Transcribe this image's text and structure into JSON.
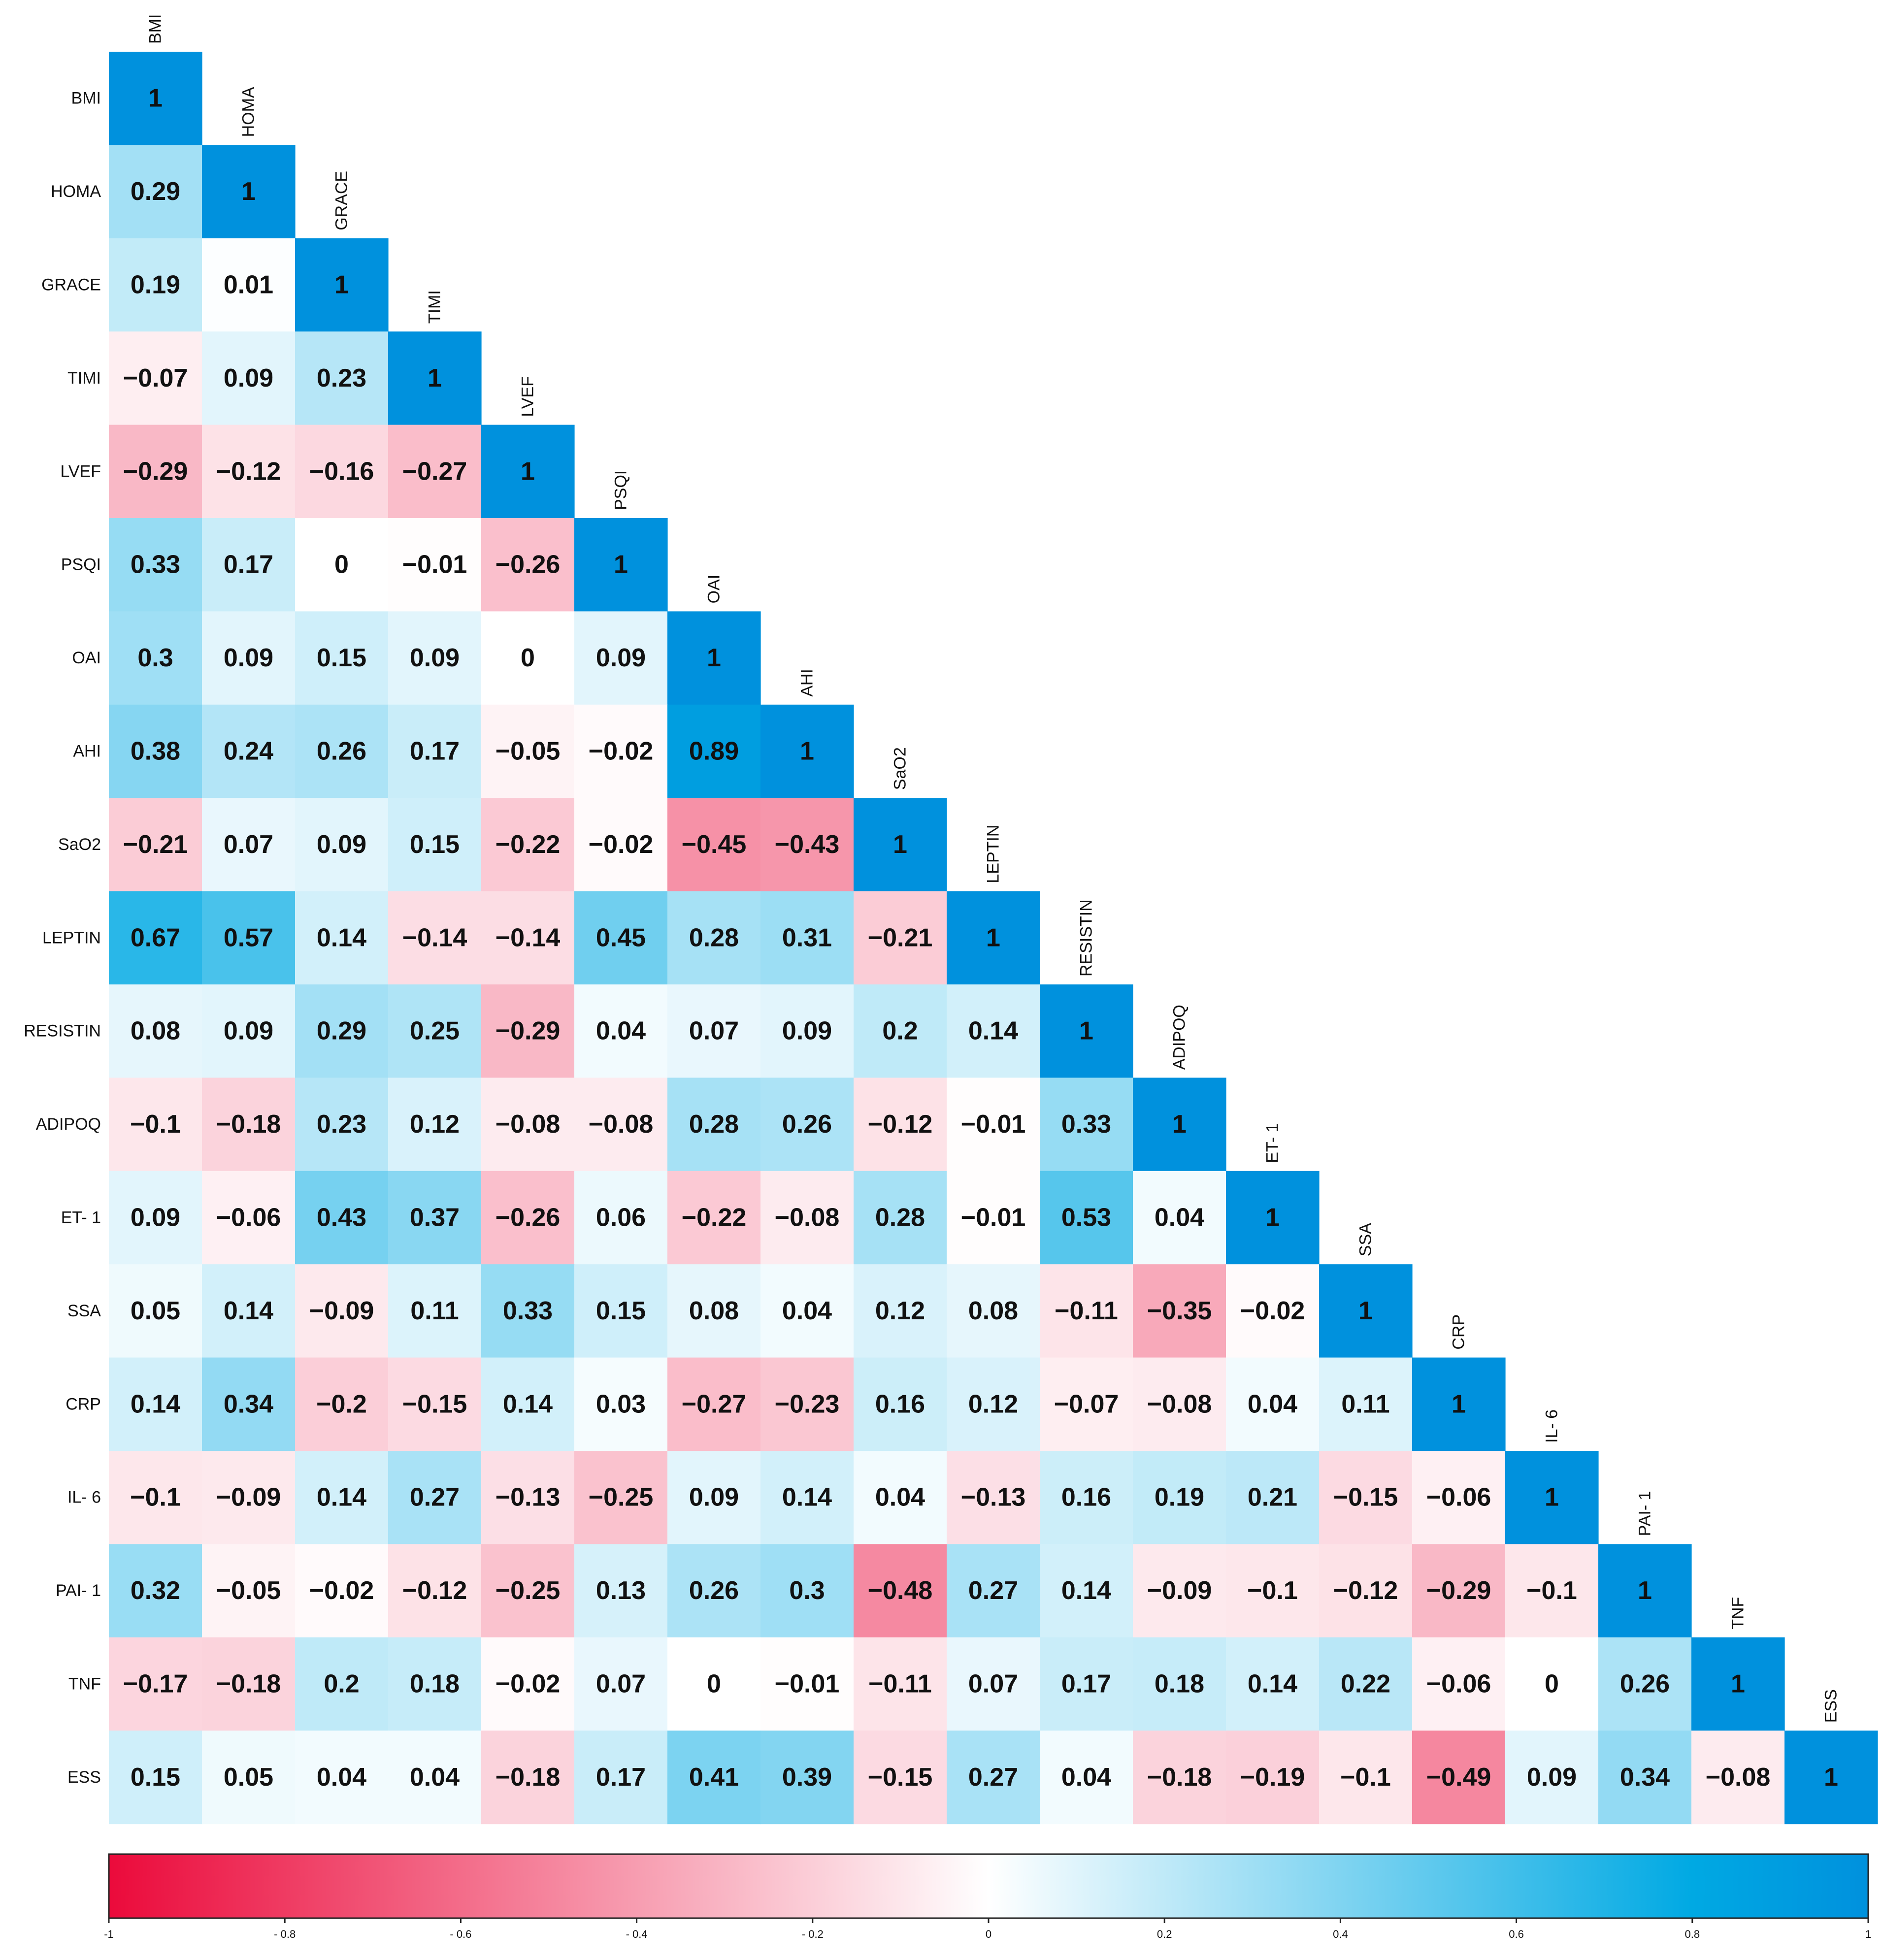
{
  "chart_data": {
    "type": "heatmap",
    "variables": [
      "BMI",
      "HOMA",
      "GRACE",
      "TIMI",
      "LVEF",
      "PSQI",
      "OAI",
      "AHI",
      "SaO2",
      "LEPTIN",
      "RESISTIN",
      "ADIPOQ",
      "ET- 1",
      "SSA",
      "CRP",
      "IL- 6",
      "PAI- 1",
      "TNF",
      "ESS"
    ],
    "layout": "lower-triangle",
    "matrix": [
      [
        "1"
      ],
      [
        "0.29",
        "1"
      ],
      [
        "0.19",
        "0.01",
        "1"
      ],
      [
        "−0.07",
        "0.09",
        "0.23",
        "1"
      ],
      [
        "−0.29",
        "−0.12",
        "−0.16",
        "−0.27",
        "1"
      ],
      [
        "0.33",
        "0.17",
        "0",
        "−0.01",
        "−0.26",
        "1"
      ],
      [
        "0.3",
        "0.09",
        "0.15",
        "0.09",
        "0",
        "0.09",
        "1"
      ],
      [
        "0.38",
        "0.24",
        "0.26",
        "0.17",
        "−0.05",
        "−0.02",
        "0.89",
        "1"
      ],
      [
        "−0.21",
        "0.07",
        "0.09",
        "0.15",
        "−0.22",
        "−0.02",
        "−0.45",
        "−0.43",
        "1"
      ],
      [
        "0.67",
        "0.57",
        "0.14",
        "−0.14",
        "−0.14",
        "0.45",
        "0.28",
        "0.31",
        "−0.21",
        "1"
      ],
      [
        "0.08",
        "0.09",
        "0.29",
        "0.25",
        "−0.29",
        "0.04",
        "0.07",
        "0.09",
        "0.2",
        "0.14",
        "1"
      ],
      [
        "−0.1",
        "−0.18",
        "0.23",
        "0.12",
        "−0.08",
        "−0.08",
        "0.28",
        "0.26",
        "−0.12",
        "−0.01",
        "0.33",
        "1"
      ],
      [
        "0.09",
        "−0.06",
        "0.43",
        "0.37",
        "−0.26",
        "0.06",
        "−0.22",
        "−0.08",
        "0.28",
        "−0.01",
        "0.53",
        "0.04",
        "1"
      ],
      [
        "0.05",
        "0.14",
        "−0.09",
        "0.11",
        "0.33",
        "0.15",
        "0.08",
        "0.04",
        "0.12",
        "0.08",
        "−0.11",
        "−0.35",
        "−0.02",
        "1"
      ],
      [
        "0.14",
        "0.34",
        "−0.2",
        "−0.15",
        "0.14",
        "0.03",
        "−0.27",
        "−0.23",
        "0.16",
        "0.12",
        "−0.07",
        "−0.08",
        "0.04",
        "0.11",
        "1"
      ],
      [
        "−0.1",
        "−0.09",
        "0.14",
        "0.27",
        "−0.13",
        "−0.25",
        "0.09",
        "0.14",
        "0.04",
        "−0.13",
        "0.16",
        "0.19",
        "0.21",
        "−0.15",
        "−0.06",
        "1"
      ],
      [
        "0.32",
        "−0.05",
        "−0.02",
        "−0.12",
        "−0.25",
        "0.13",
        "0.26",
        "0.3",
        "−0.48",
        "0.27",
        "0.14",
        "−0.09",
        "−0.1",
        "−0.12",
        "−0.29",
        "−0.1",
        "1"
      ],
      [
        "−0.17",
        "−0.18",
        "0.2",
        "0.18",
        "−0.02",
        "0.07",
        "0",
        "−0.01",
        "−0.11",
        "0.07",
        "0.17",
        "0.18",
        "0.14",
        "0.22",
        "−0.06",
        "0",
        "0.26",
        "1"
      ],
      [
        "0.15",
        "0.05",
        "0.04",
        "0.04",
        "−0.18",
        "0.17",
        "0.41",
        "0.39",
        "−0.15",
        "0.27",
        "0.04",
        "−0.18",
        "−0.19",
        "−0.1",
        "−0.49",
        "0.09",
        "0.34",
        "−0.08",
        "1"
      ]
    ],
    "color_scale": {
      "min": -1,
      "max": 1,
      "stops": [
        {
          "value": -1,
          "color": "#eb0a3b"
        },
        {
          "value": 0,
          "color": "#ffffff"
        },
        {
          "value": 0.8,
          "color": "#00a9e3"
        },
        {
          "value": 1,
          "color": "#0091dd"
        }
      ],
      "ticks": [
        "-1",
        "- 0.8",
        "- 0.6",
        "- 0.4",
        "- 0.2",
        "0",
        "0.2",
        "0.4",
        "0.6",
        "0.8",
        "1"
      ]
    },
    "legend_position": "bottom",
    "grid": false
  }
}
